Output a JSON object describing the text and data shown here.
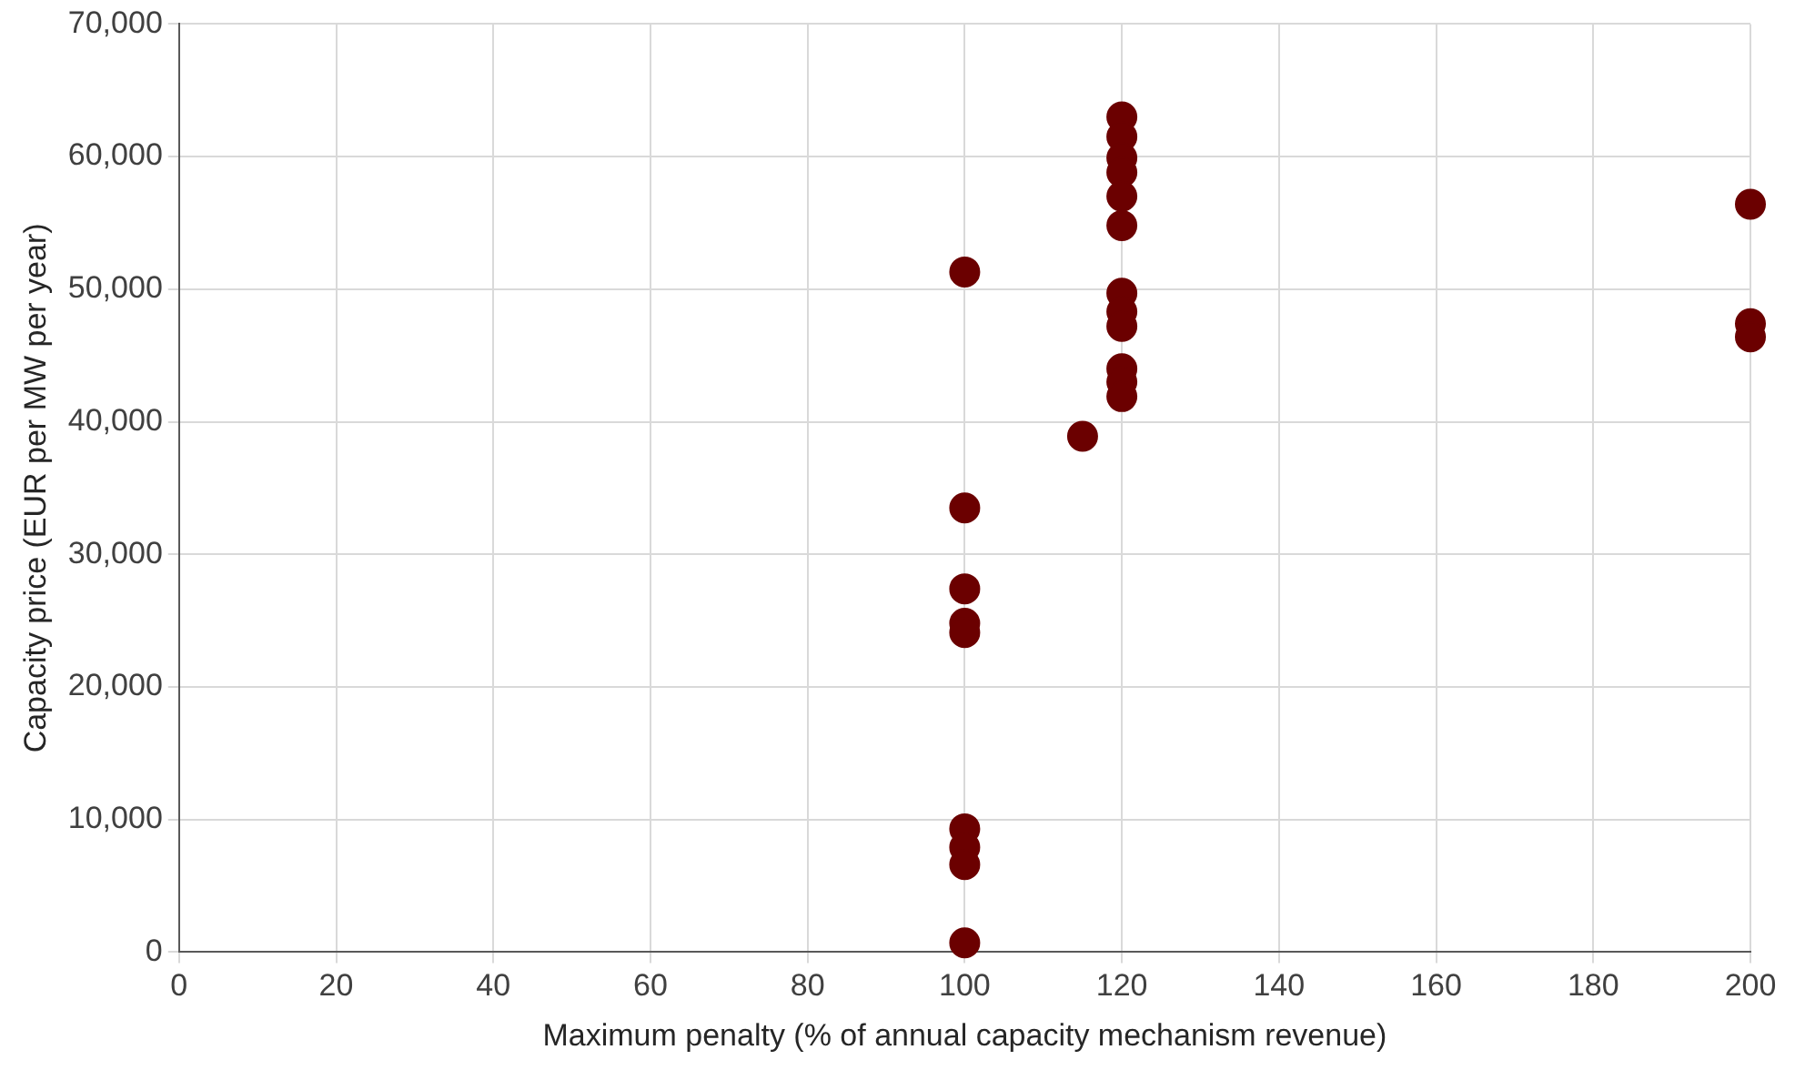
{
  "chart_data": {
    "type": "scatter",
    "xlabel": "Maximum penalty (% of annual capacity mechanism revenue)",
    "ylabel": "Capacity price (EUR per MW per year)",
    "series": [
      {
        "color": "#6b0000",
        "x": [
          100,
          100,
          100,
          100,
          100,
          100,
          100,
          100,
          100,
          115,
          120,
          120,
          120,
          120,
          120,
          120,
          120,
          120,
          120,
          120,
          120,
          120,
          200,
          200,
          200
        ],
        "values": [
          51300,
          33500,
          27400,
          24800,
          24100,
          9300,
          7900,
          6600,
          700,
          38900,
          63000,
          61500,
          59900,
          58800,
          57000,
          54800,
          49700,
          48300,
          47200,
          44000,
          43000,
          41900,
          56400,
          47400,
          46400
        ]
      }
    ],
    "xlim": [
      0,
      200
    ],
    "xticks": [
      0,
      20,
      40,
      60,
      80,
      100,
      120,
      140,
      160,
      180,
      200
    ],
    "ylim": [
      0,
      70000
    ],
    "yticks": [
      {
        "value": 0,
        "label": "0"
      },
      {
        "value": 10000,
        "label": "10,000"
      },
      {
        "value": 20000,
        "label": "20,000"
      },
      {
        "value": 30000,
        "label": "30,000"
      },
      {
        "value": 40000,
        "label": "40,000"
      },
      {
        "value": 50000,
        "label": "50,000"
      },
      {
        "value": 60000,
        "label": "60,000"
      },
      {
        "value": 70000,
        "label": "70,000"
      }
    ],
    "grid": true,
    "marker": "circle",
    "legend": false
  }
}
